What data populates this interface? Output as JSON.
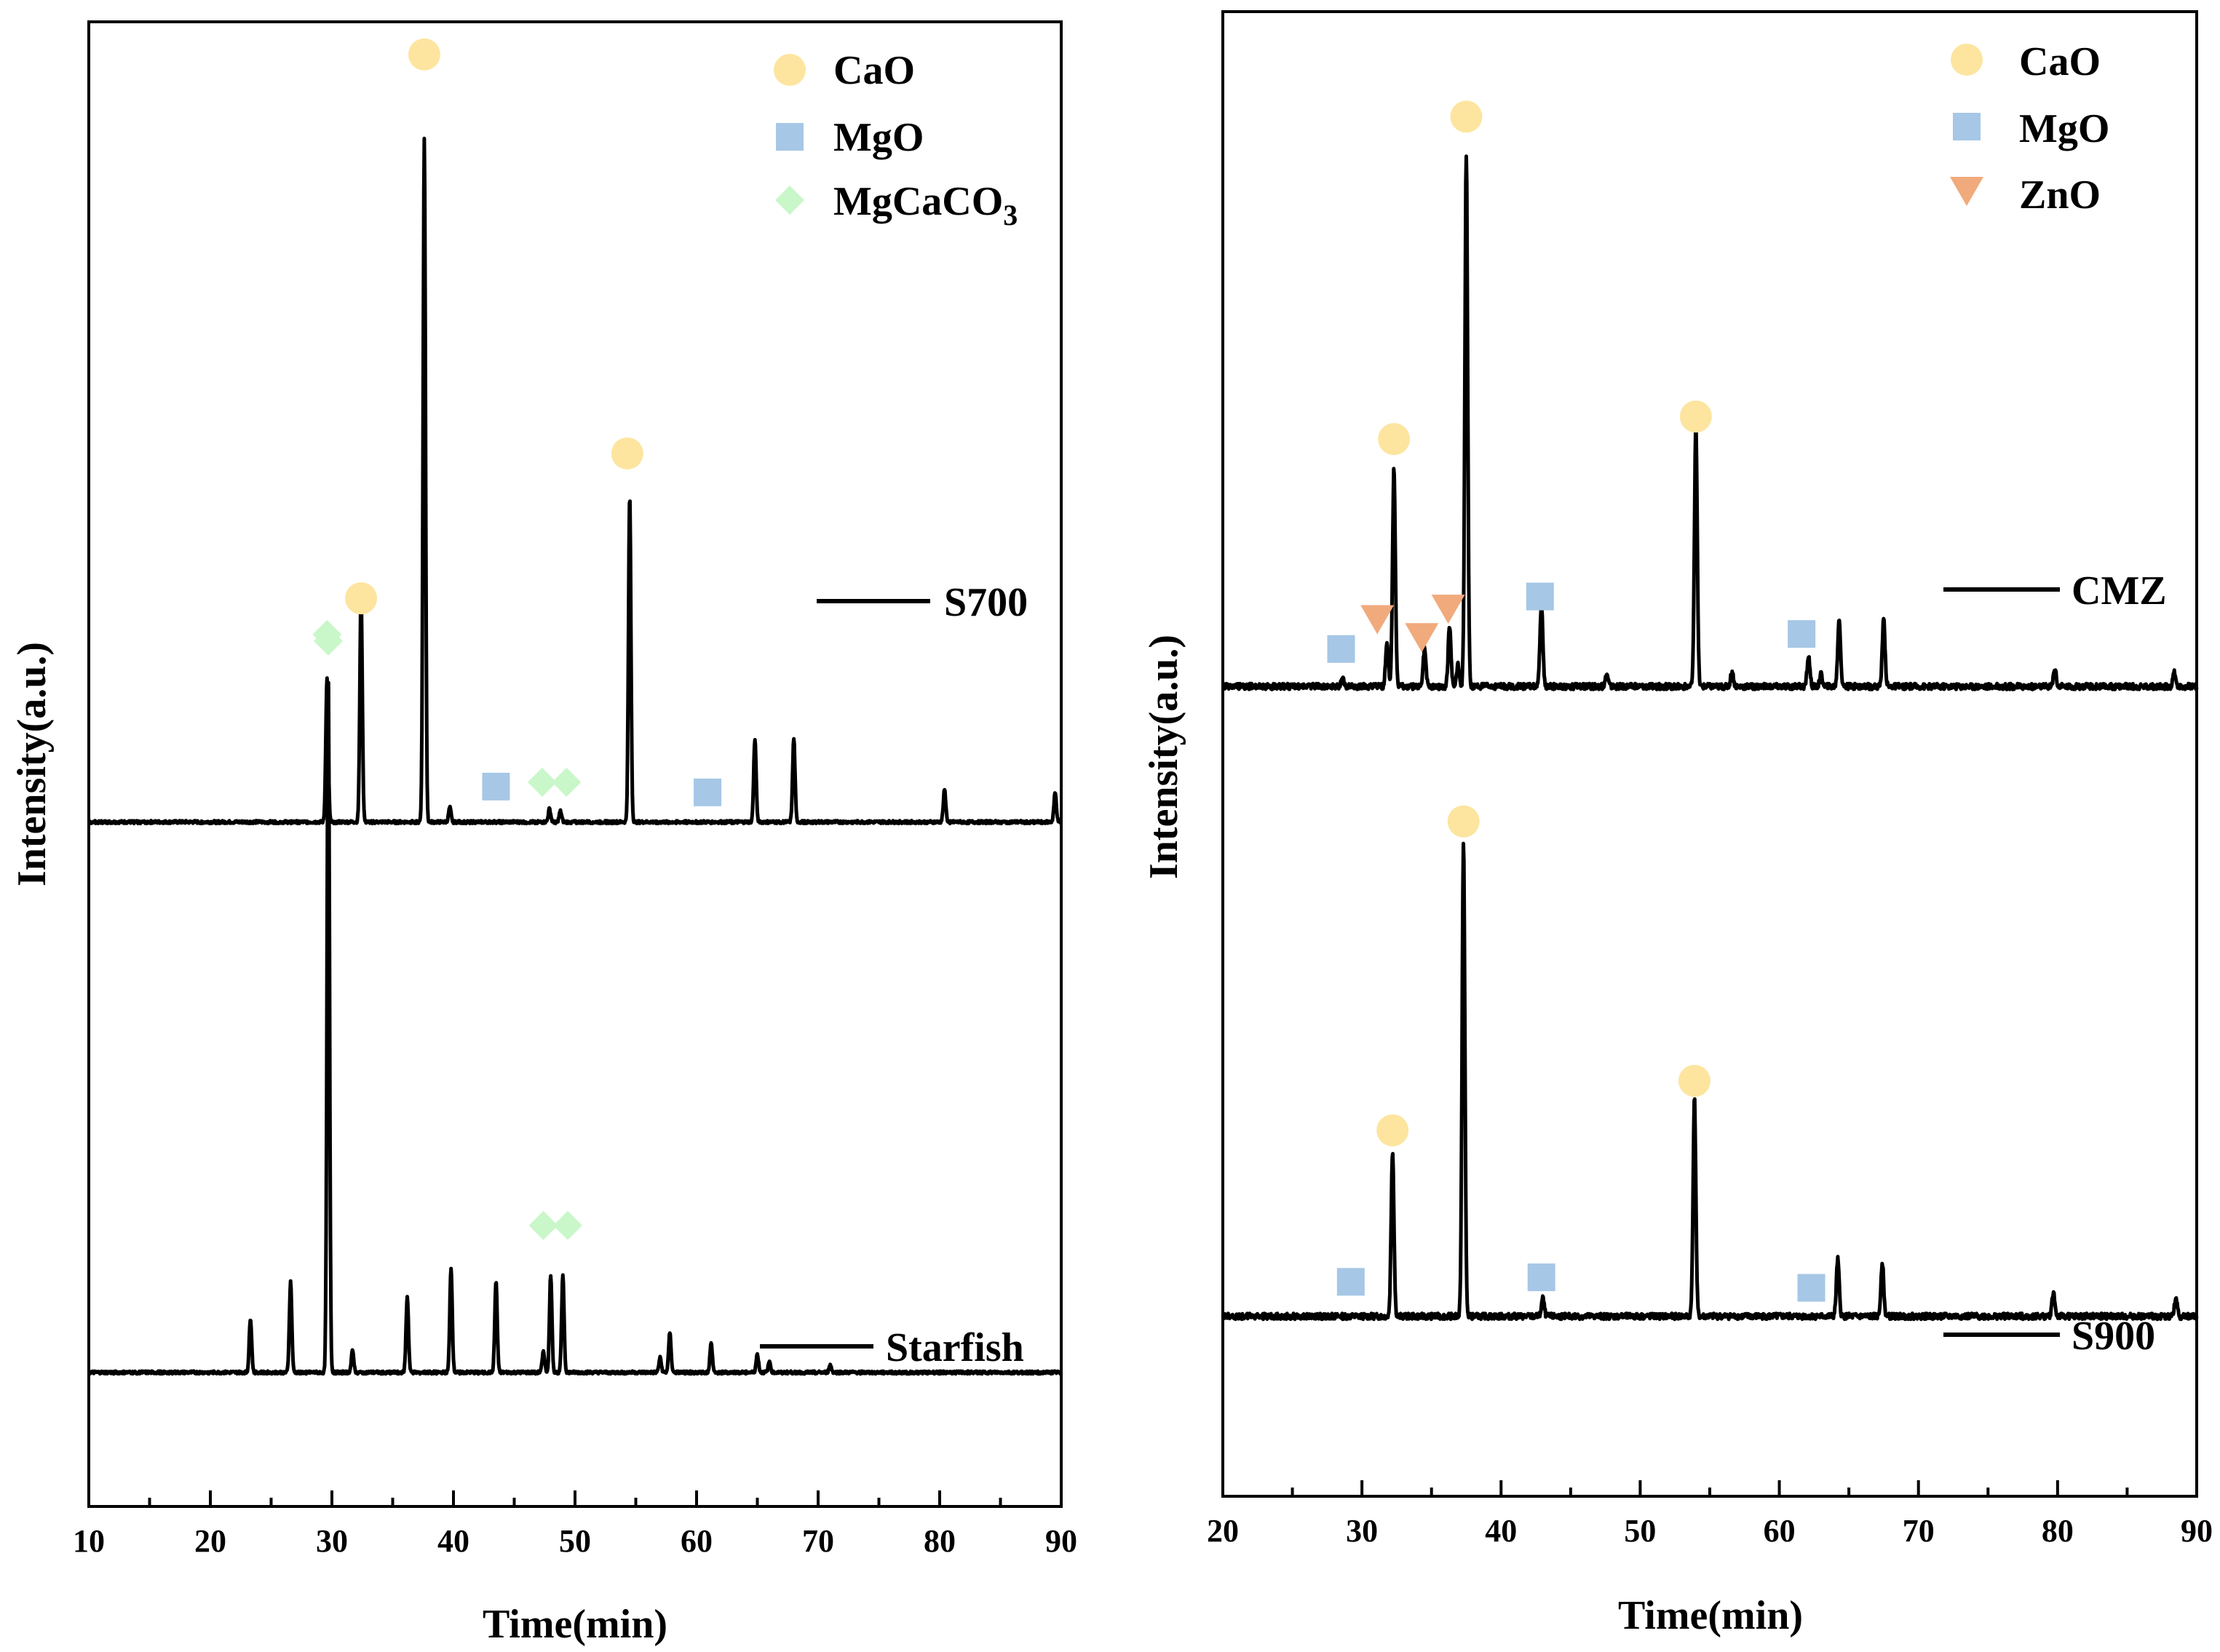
{
  "colors": {
    "CaO": "#fde5a0",
    "MgO": "#a6c7e6",
    "MgCaCO3": "#c9f7c9",
    "ZnO": "#f1aa7c",
    "trace": "#000000"
  },
  "chart_data": [
    {
      "type": "line",
      "xlabel": "Time(min)",
      "ylabel": "Intensity(a.u.)",
      "xlim": [
        10,
        90
      ],
      "xticks": [
        "10",
        "20",
        "30",
        "40",
        "50",
        "60",
        "70",
        "80",
        "90"
      ],
      "legend": [
        {
          "shape": "circle",
          "name": "CaO",
          "label": "CaO"
        },
        {
          "shape": "square",
          "name": "MgO",
          "label": "MgO"
        },
        {
          "shape": "diamond",
          "name": "MgCaCO3",
          "label": "MgCaCO",
          "sub": "3"
        }
      ],
      "series": [
        {
          "name": "S700",
          "label": "S700",
          "baseline": 0.395,
          "peaks": [
            [
              29.6,
              0.2
            ],
            [
              32.4,
              0.315
            ],
            [
              37.6,
              0.945
            ],
            [
              39.7,
              0.02
            ],
            [
              47.9,
              0.018
            ],
            [
              48.8,
              0.015
            ],
            [
              54.5,
              0.45
            ],
            [
              64.8,
              0.115
            ],
            [
              68.0,
              0.115
            ],
            [
              80.4,
              0.045
            ],
            [
              89.5,
              0.04
            ]
          ],
          "markers": [
            {
              "x": 29.6,
              "y": 0.654,
              "shape": "diamond",
              "phase": "MgCaCO3"
            },
            {
              "x": 32.4,
              "y": 0.704,
              "shape": "circle",
              "phase": "CaO"
            },
            {
              "x": 37.6,
              "y": 1.455,
              "shape": "circle",
              "phase": "CaO"
            },
            {
              "x": 43.5,
              "y": 0.444,
              "shape": "square",
              "phase": "MgO"
            },
            {
              "x": 47.3,
              "y": 0.45,
              "shape": "diamond",
              "phase": "MgCaCO3"
            },
            {
              "x": 49.3,
              "y": 0.45,
              "shape": "diamond",
              "phase": "MgCaCO3"
            },
            {
              "x": 54.3,
              "y": 0.904,
              "shape": "circle",
              "phase": "CaO"
            },
            {
              "x": 60.9,
              "y": 0.436,
              "shape": "square",
              "phase": "MgO"
            }
          ]
        },
        {
          "name": "Starfish",
          "label": "Starfish",
          "baseline": -0.365,
          "peaks": [
            [
              23.3,
              0.075
            ],
            [
              26.6,
              0.125
            ],
            [
              29.7,
              0.97
            ],
            [
              31.7,
              0.03
            ],
            [
              36.2,
              0.105
            ],
            [
              39.8,
              0.145
            ],
            [
              43.5,
              0.125
            ],
            [
              47.4,
              0.03
            ],
            [
              48.0,
              0.135
            ],
            [
              49.0,
              0.135
            ],
            [
              57.0,
              0.02
            ],
            [
              57.8,
              0.055
            ],
            [
              61.2,
              0.04
            ],
            [
              65.0,
              0.025
            ],
            [
              66.0,
              0.015
            ],
            [
              71.0,
              0.01
            ]
          ],
          "markers": [
            {
              "x": 29.7,
              "y": 0.645,
              "shape": "diamond",
              "phase": "MgCaCO3"
            },
            {
              "x": 47.4,
              "y": -0.162,
              "shape": "diamond",
              "phase": "MgCaCO3"
            },
            {
              "x": 49.4,
              "y": -0.162,
              "shape": "diamond",
              "phase": "MgCaCO3"
            }
          ]
        }
      ]
    },
    {
      "type": "line",
      "xlabel": "Time(min)",
      "ylabel": "Intensity(a.u.)",
      "xlim": [
        20,
        90
      ],
      "xticks": [
        "20",
        "30",
        "40",
        "50",
        "60",
        "70",
        "80",
        "90"
      ],
      "legend": [
        {
          "shape": "circle",
          "name": "CaO",
          "label": "CaO"
        },
        {
          "shape": "square",
          "name": "MgO",
          "label": "MgO"
        },
        {
          "shape": "triangle",
          "name": "ZnO",
          "label": "ZnO"
        }
      ],
      "series": [
        {
          "name": "CMZ",
          "label": "CMZ",
          "baseline": 0.42,
          "peaks": [
            [
              28.6,
              0.005
            ],
            [
              31.8,
              0.03
            ],
            [
              32.3,
              0.145
            ],
            [
              34.5,
              0.025
            ],
            [
              36.3,
              0.04
            ],
            [
              36.9,
              0.015
            ],
            [
              37.5,
              0.355
            ],
            [
              42.9,
              0.055
            ],
            [
              47.6,
              0.008
            ],
            [
              54.0,
              0.175
            ],
            [
              56.6,
              0.01
            ],
            [
              62.1,
              0.02
            ],
            [
              63.0,
              0.008
            ],
            [
              64.3,
              0.045
            ],
            [
              67.5,
              0.045
            ],
            [
              79.8,
              0.012
            ],
            [
              88.4,
              0.01
            ]
          ],
          "markers": [
            {
              "x": 28.5,
              "y": 0.445,
              "shape": "square",
              "phase": "MgO"
            },
            {
              "x": 31.1,
              "y": 0.465,
              "shape": "triangle",
              "phase": "ZnO"
            },
            {
              "x": 32.3,
              "y": 0.585,
              "shape": "circle",
              "phase": "CaO"
            },
            {
              "x": 34.3,
              "y": 0.453,
              "shape": "triangle",
              "phase": "ZnO"
            },
            {
              "x": 36.2,
              "y": 0.472,
              "shape": "triangle",
              "phase": "ZnO"
            },
            {
              "x": 37.5,
              "y": 0.8,
              "shape": "circle",
              "phase": "CaO"
            },
            {
              "x": 42.8,
              "y": 0.48,
              "shape": "square",
              "phase": "MgO"
            },
            {
              "x": 54.0,
              "y": 0.6,
              "shape": "circle",
              "phase": "CaO"
            },
            {
              "x": 61.6,
              "y": 0.455,
              "shape": "square",
              "phase": "MgO"
            }
          ]
        },
        {
          "name": "S900",
          "label": "S900",
          "baseline": 0.0,
          "peaks": [
            [
              32.2,
              0.11
            ],
            [
              37.3,
              0.315
            ],
            [
              43.0,
              0.012
            ],
            [
              53.9,
              0.145
            ],
            [
              64.2,
              0.038
            ],
            [
              67.4,
              0.036
            ],
            [
              79.7,
              0.016
            ],
            [
              88.5,
              0.012
            ]
          ],
          "markers": [
            {
              "x": 29.2,
              "y": 0.023,
              "shape": "square",
              "phase": "MgO"
            },
            {
              "x": 32.2,
              "y": 0.124,
              "shape": "circle",
              "phase": "CaO"
            },
            {
              "x": 37.3,
              "y": 0.33,
              "shape": "circle",
              "phase": "CaO"
            },
            {
              "x": 42.9,
              "y": 0.026,
              "shape": "square",
              "phase": "MgO"
            },
            {
              "x": 53.9,
              "y": 0.157,
              "shape": "circle",
              "phase": "CaO"
            },
            {
              "x": 62.3,
              "y": 0.019,
              "shape": "square",
              "phase": "MgO"
            }
          ]
        }
      ]
    }
  ]
}
